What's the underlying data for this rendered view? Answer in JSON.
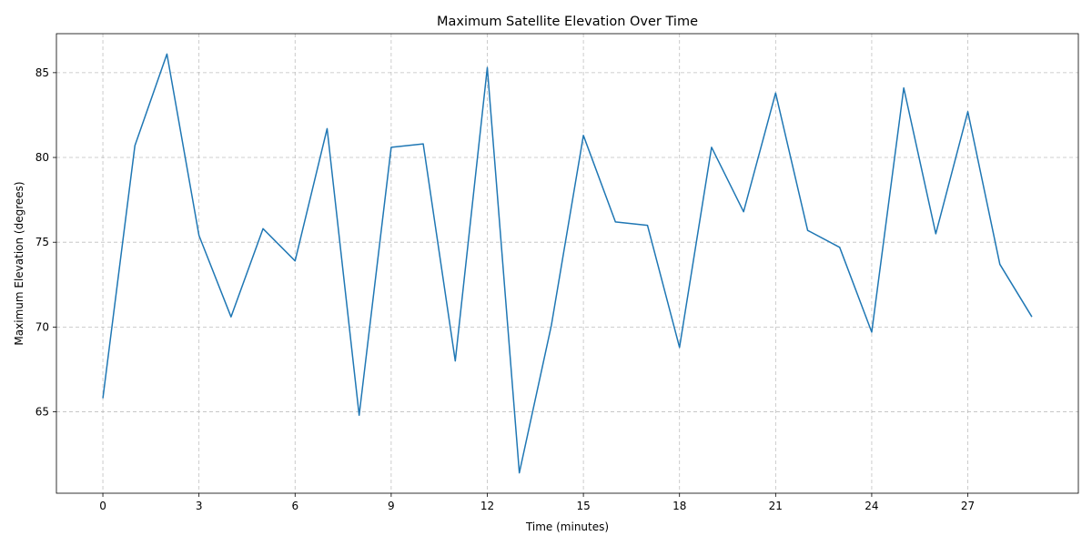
{
  "chart_data": {
    "type": "line",
    "title": "Maximum Satellite Elevation Over Time",
    "xlabel": "Time (minutes)",
    "ylabel": "Maximum Elevation (degrees)",
    "xlim": [
      -1.45,
      30.45
    ],
    "ylim": [
      60.2,
      87.3
    ],
    "xticks": [
      0,
      3,
      6,
      9,
      12,
      15,
      18,
      21,
      24,
      27
    ],
    "yticks": [
      65,
      70,
      75,
      80,
      85
    ],
    "grid": true,
    "color": "#1f77b4",
    "x": [
      0,
      1,
      2,
      3,
      4,
      5,
      6,
      7,
      8,
      9,
      10,
      11,
      12,
      13,
      14,
      15,
      16,
      17,
      18,
      19,
      20,
      21,
      22,
      23,
      24,
      25,
      26,
      27,
      28,
      29
    ],
    "y": [
      65.8,
      80.7,
      86.1,
      75.4,
      70.6,
      75.8,
      73.9,
      81.7,
      64.8,
      80.6,
      80.8,
      68.0,
      85.3,
      61.4,
      70.1,
      81.3,
      76.2,
      76.0,
      68.8,
      80.6,
      76.8,
      83.8,
      75.7,
      74.7,
      69.7,
      84.1,
      75.5,
      82.7,
      73.7,
      70.6
    ]
  }
}
